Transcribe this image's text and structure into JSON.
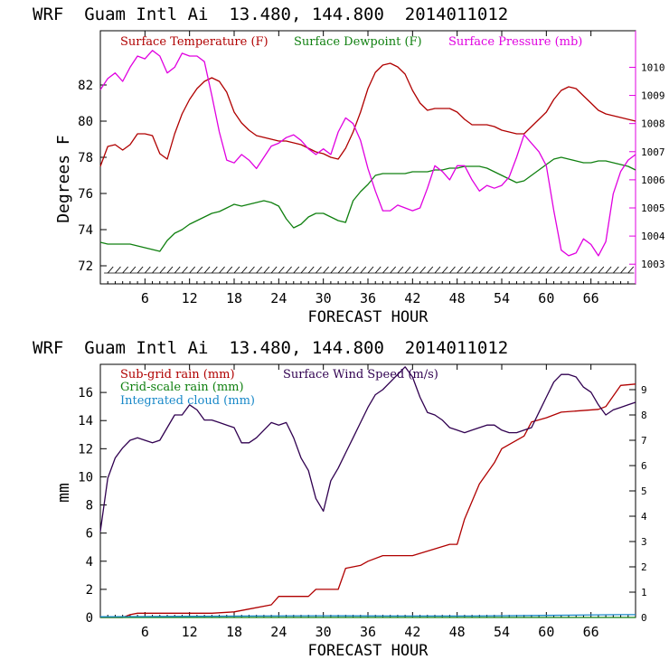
{
  "charts": [
    {
      "type": "line",
      "title": "WRF  Guam Intl Ai  13.480, 144.800  2014011012",
      "xlabel": "FORECAST HOUR",
      "ylabel": "Degrees F",
      "xlim": [
        0,
        72
      ],
      "x_ticks": [
        "6",
        "12",
        "18",
        "24",
        "30",
        "36",
        "42",
        "48",
        "54",
        "60",
        "66"
      ],
      "ylim": [
        71,
        85
      ],
      "y_ticks": [
        "72",
        "74",
        "76",
        "78",
        "80",
        "82"
      ],
      "y2lim": [
        1002.3,
        1011.3
      ],
      "y2_ticks": [
        "1003",
        "1004",
        "1005",
        "1006",
        "1007",
        "1008",
        "1009",
        "1010"
      ],
      "legend": [
        {
          "label": "Surface Temperature (F)",
          "color": "#b00000"
        },
        {
          "label": "Surface Dewpoint (F)",
          "color": "#108010"
        },
        {
          "label": "Surface Pressure (mb)",
          "color": "#e000e0"
        }
      ],
      "series": [
        {
          "name": "Surface Temperature",
          "color": "#b00000",
          "axis": "left",
          "x": [
            0,
            1,
            2,
            3,
            4,
            5,
            6,
            7,
            8,
            9,
            10,
            11,
            12,
            13,
            14,
            15,
            16,
            17,
            18,
            19,
            20,
            21,
            22,
            23,
            24,
            25,
            26,
            27,
            28,
            29,
            30,
            31,
            32,
            33,
            34,
            35,
            36,
            37,
            38,
            39,
            40,
            41,
            42,
            43,
            44,
            45,
            46,
            47,
            48,
            49,
            50,
            51,
            52,
            53,
            54,
            55,
            56,
            57,
            58,
            59,
            60,
            61,
            62,
            63,
            64,
            65,
            66,
            67,
            68,
            69,
            70,
            71,
            72
          ],
          "y": [
            77.5,
            78.6,
            78.7,
            78.4,
            78.7,
            79.3,
            79.3,
            79.2,
            78.2,
            77.9,
            79.3,
            80.4,
            81.2,
            81.8,
            82.2,
            82.4,
            82.2,
            81.6,
            80.5,
            79.9,
            79.5,
            79.2,
            79.1,
            79.0,
            78.9,
            78.9,
            78.8,
            78.7,
            78.5,
            78.3,
            78.2,
            78.0,
            77.9,
            78.5,
            79.4,
            80.5,
            81.8,
            82.7,
            83.1,
            83.2,
            83.0,
            82.6,
            81.7,
            81.0,
            80.6,
            80.7,
            80.7,
            80.7,
            80.5,
            80.1,
            79.8,
            79.8,
            79.8,
            79.7,
            79.5,
            79.4,
            79.3,
            79.3,
            79.7,
            80.1,
            80.5,
            81.2,
            81.7,
            81.9,
            81.8,
            81.4,
            81.0,
            80.6,
            80.4,
            80.3,
            80.2,
            80.1,
            80.0
          ]
        },
        {
          "name": "Surface Dewpoint",
          "color": "#108010",
          "axis": "left",
          "x": [
            0,
            1,
            2,
            3,
            4,
            5,
            6,
            7,
            8,
            9,
            10,
            11,
            12,
            13,
            14,
            15,
            16,
            17,
            18,
            19,
            20,
            21,
            22,
            23,
            24,
            25,
            26,
            27,
            28,
            29,
            30,
            31,
            32,
            33,
            34,
            35,
            36,
            37,
            38,
            39,
            40,
            41,
            42,
            43,
            44,
            45,
            46,
            47,
            48,
            49,
            50,
            51,
            52,
            53,
            54,
            55,
            56,
            57,
            58,
            59,
            60,
            61,
            62,
            63,
            64,
            65,
            66,
            67,
            68,
            69,
            70,
            71,
            72
          ],
          "y": [
            73.3,
            73.2,
            73.2,
            73.2,
            73.2,
            73.1,
            73.0,
            72.9,
            72.8,
            73.4,
            73.8,
            74.0,
            74.3,
            74.5,
            74.7,
            74.9,
            75.0,
            75.2,
            75.4,
            75.3,
            75.4,
            75.5,
            75.6,
            75.5,
            75.3,
            74.6,
            74.1,
            74.3,
            74.7,
            74.9,
            74.9,
            74.7,
            74.5,
            74.4,
            75.6,
            76.1,
            76.5,
            77.0,
            77.1,
            77.1,
            77.1,
            77.1,
            77.2,
            77.2,
            77.2,
            77.3,
            77.3,
            77.4,
            77.4,
            77.5,
            77.5,
            77.5,
            77.4,
            77.2,
            77.0,
            76.8,
            76.6,
            76.7,
            77.0,
            77.3,
            77.6,
            77.9,
            78.0,
            77.9,
            77.8,
            77.7,
            77.7,
            77.8,
            77.8,
            77.7,
            77.6,
            77.5,
            77.3
          ]
        },
        {
          "name": "Surface Pressure",
          "color": "#e000e0",
          "axis": "right",
          "x": [
            0,
            1,
            2,
            3,
            4,
            5,
            6,
            7,
            8,
            9,
            10,
            11,
            12,
            13,
            14,
            15,
            16,
            17,
            18,
            19,
            20,
            21,
            22,
            23,
            24,
            25,
            26,
            27,
            28,
            29,
            30,
            31,
            32,
            33,
            34,
            35,
            36,
            37,
            38,
            39,
            40,
            41,
            42,
            43,
            44,
            45,
            46,
            47,
            48,
            49,
            50,
            51,
            52,
            53,
            54,
            55,
            56,
            57,
            58,
            59,
            60,
            61,
            62,
            63,
            64,
            65,
            66,
            67,
            68,
            69,
            70,
            71,
            72
          ],
          "y": [
            1009.2,
            1009.6,
            1009.8,
            1009.5,
            1010.0,
            1010.4,
            1010.3,
            1010.6,
            1010.4,
            1009.8,
            1010.0,
            1010.5,
            1010.4,
            1010.4,
            1010.2,
            1009.0,
            1007.7,
            1006.7,
            1006.6,
            1006.9,
            1006.7,
            1006.4,
            1006.8,
            1007.2,
            1007.3,
            1007.5,
            1007.6,
            1007.4,
            1007.1,
            1006.9,
            1007.1,
            1006.9,
            1007.7,
            1008.2,
            1008.0,
            1007.4,
            1006.4,
            1005.6,
            1004.9,
            1004.9,
            1005.1,
            1005.0,
            1004.9,
            1005.0,
            1005.7,
            1006.5,
            1006.3,
            1006.0,
            1006.5,
            1006.5,
            1006.0,
            1005.6,
            1005.8,
            1005.7,
            1005.8,
            1006.1,
            1006.8,
            1007.6,
            1007.3,
            1007.0,
            1006.5,
            1004.9,
            1003.5,
            1003.3,
            1003.4,
            1003.9,
            1003.7,
            1003.3,
            1003.8,
            1005.5,
            1006.3,
            1006.7,
            1006.9
          ]
        }
      ],
      "wind_barbs_note": "wind barbs along bottom of plot"
    },
    {
      "type": "line",
      "title": "WRF  Guam Intl Ai  13.480, 144.800  2014011012",
      "xlabel": "FORECAST HOUR",
      "ylabel": "mm",
      "xlim": [
        0,
        72
      ],
      "x_ticks": [
        "6",
        "12",
        "18",
        "24",
        "30",
        "36",
        "42",
        "48",
        "54",
        "60",
        "66"
      ],
      "ylim": [
        0,
        18
      ],
      "y_ticks": [
        "0",
        "2",
        "4",
        "6",
        "8",
        "10",
        "12",
        "14",
        "16"
      ],
      "y2lim": [
        0,
        10
      ],
      "y2_ticks": [
        "0",
        "1",
        "2",
        "3",
        "4",
        "5",
        "6",
        "7",
        "8",
        "9"
      ],
      "legend": [
        {
          "label": "Sub-grid rain (mm)",
          "color": "#b00000"
        },
        {
          "label": "Surface Wind Speed (m/s)",
          "color": "#300050"
        },
        {
          "label": "Grid-scale rain (mm)",
          "color": "#108010"
        },
        {
          "label": "Integrated cloud (mm)",
          "color": "#1888c8"
        }
      ],
      "series": [
        {
          "name": "Sub-grid rain",
          "color": "#b00000",
          "axis": "left",
          "x": [
            0,
            3,
            4,
            5,
            15,
            18,
            20,
            23,
            24,
            28,
            29,
            32,
            33,
            35,
            36,
            38,
            42,
            47,
            48,
            49,
            51,
            53,
            54,
            57,
            58,
            60,
            62,
            67,
            68,
            70,
            72
          ],
          "y": [
            0,
            0,
            0.2,
            0.3,
            0.3,
            0.4,
            0.6,
            0.9,
            1.5,
            1.5,
            2.0,
            2.0,
            3.5,
            3.7,
            4.0,
            4.4,
            4.4,
            5.2,
            5.2,
            7.0,
            9.5,
            11.0,
            12.0,
            12.9,
            13.9,
            14.2,
            14.6,
            14.8,
            15.0,
            16.5,
            16.6
          ]
        },
        {
          "name": "Surface Wind Speed",
          "color": "#300050",
          "axis": "right",
          "x": [
            0,
            1,
            2,
            3,
            4,
            5,
            6,
            7,
            8,
            9,
            10,
            11,
            12,
            13,
            14,
            15,
            16,
            17,
            18,
            19,
            20,
            21,
            22,
            23,
            24,
            25,
            26,
            27,
            28,
            29,
            30,
            31,
            32,
            33,
            34,
            35,
            36,
            37,
            38,
            39,
            40,
            41,
            42,
            43,
            44,
            45,
            46,
            47,
            48,
            49,
            50,
            51,
            52,
            53,
            54,
            55,
            56,
            57,
            58,
            59,
            60,
            61,
            62,
            63,
            64,
            65,
            66,
            67,
            68,
            69,
            70,
            71,
            72
          ],
          "y": [
            3.4,
            5.5,
            6.3,
            6.7,
            7.0,
            7.1,
            7.0,
            6.9,
            7.0,
            7.5,
            8.0,
            8.0,
            8.4,
            8.2,
            7.8,
            7.8,
            7.7,
            7.6,
            7.5,
            6.9,
            6.9,
            7.1,
            7.4,
            7.7,
            7.6,
            7.7,
            7.1,
            6.3,
            5.8,
            4.7,
            4.2,
            5.4,
            5.9,
            6.5,
            7.1,
            7.7,
            8.3,
            8.8,
            9.0,
            9.3,
            9.6,
            9.9,
            9.5,
            8.7,
            8.1,
            8.0,
            7.8,
            7.5,
            7.4,
            7.3,
            7.4,
            7.5,
            7.6,
            7.6,
            7.4,
            7.3,
            7.3,
            7.4,
            7.5,
            8.1,
            8.7,
            9.3,
            9.6,
            9.6,
            9.5,
            9.1,
            8.9,
            8.4,
            8.0,
            8.2,
            8.3,
            8.4,
            8.5
          ]
        },
        {
          "name": "Grid-scale rain",
          "color": "#108010",
          "axis": "left",
          "x": [
            0,
            72
          ],
          "y": [
            0,
            0
          ]
        },
        {
          "name": "Integrated cloud",
          "color": "#1888c8",
          "axis": "left",
          "x": [
            0,
            10,
            20,
            30,
            40,
            50,
            60,
            70,
            72
          ],
          "y": [
            0.05,
            0.08,
            0.1,
            0.12,
            0.1,
            0.1,
            0.15,
            0.2,
            0.2
          ]
        }
      ]
    }
  ]
}
